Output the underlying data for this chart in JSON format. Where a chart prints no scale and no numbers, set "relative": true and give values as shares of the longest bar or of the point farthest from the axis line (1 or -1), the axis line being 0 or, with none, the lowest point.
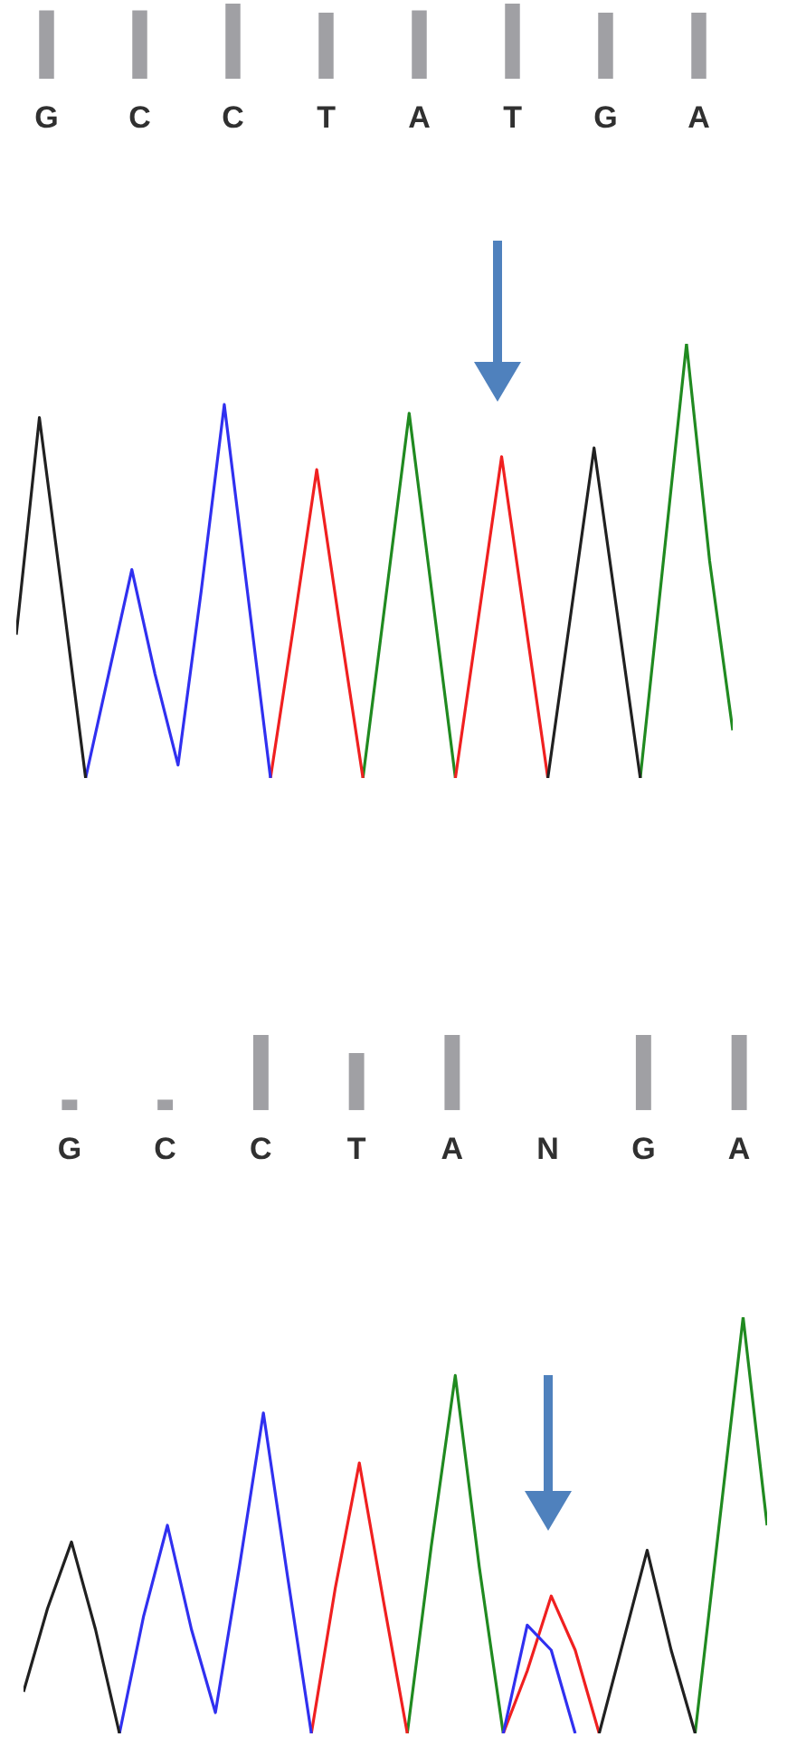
{
  "chart_data": [
    {
      "type": "bar",
      "relative": true,
      "categories": [
        "G",
        "C",
        "C",
        "T",
        "A",
        "T",
        "G",
        "A"
      ],
      "values": [
        0.91,
        0.91,
        1,
        0.88,
        0.91,
        1,
        0.88,
        0.88
      ],
      "color": "#a0a0a4"
    },
    {
      "type": "line",
      "relative": true,
      "marker": "none",
      "categories": [
        null,
        null,
        null,
        null,
        null,
        null,
        null,
        null,
        null,
        null,
        null,
        null,
        null,
        null,
        null,
        null,
        null,
        null,
        null,
        null,
        null,
        null,
        null,
        null,
        null,
        null,
        null,
        null,
        null,
        null,
        null,
        null
      ],
      "series": [
        {
          "color": "#202020",
          "values": [
            0.33,
            0.83,
            0.42,
            0,
            null,
            null,
            null,
            null,
            null,
            null,
            null,
            null,
            null,
            null,
            null,
            null,
            null,
            null,
            null,
            null,
            null,
            null,
            null,
            null,
            null,
            null,
            null,
            null,
            null,
            null,
            null,
            null
          ]
        },
        {
          "color": "#202020",
          "values": [
            null,
            null,
            null,
            null,
            null,
            null,
            null,
            null,
            null,
            null,
            null,
            null,
            null,
            null,
            null,
            null,
            null,
            null,
            null,
            null,
            null,
            null,
            null,
            0,
            0.38,
            0.76,
            0.38,
            0,
            null,
            null,
            null,
            null
          ]
        },
        {
          "color": "#3030f0",
          "values": [
            null,
            null,
            null,
            0,
            0.24,
            0.48,
            0.24,
            0.03,
            0.43,
            0.86,
            0.43,
            0,
            null,
            null,
            null,
            null,
            null,
            null,
            null,
            null,
            null,
            null,
            null,
            null,
            null,
            null,
            null,
            null,
            null,
            null,
            null,
            null
          ]
        },
        {
          "color": "#f02020",
          "values": [
            null,
            null,
            null,
            null,
            null,
            null,
            null,
            null,
            null,
            null,
            null,
            0,
            0.35,
            0.71,
            0.35,
            0,
            null,
            null,
            null,
            null,
            null,
            null,
            null,
            null,
            null,
            null,
            null,
            null,
            null,
            null,
            null,
            null
          ]
        },
        {
          "color": "#f02020",
          "values": [
            null,
            null,
            null,
            null,
            null,
            null,
            null,
            null,
            null,
            null,
            null,
            null,
            null,
            null,
            null,
            null,
            null,
            null,
            null,
            0,
            0.37,
            0.74,
            0.37,
            0,
            null,
            null,
            null,
            null,
            null,
            null,
            null,
            null
          ]
        },
        {
          "color": "#208a20",
          "values": [
            null,
            null,
            null,
            null,
            null,
            null,
            null,
            null,
            null,
            null,
            null,
            null,
            null,
            null,
            null,
            0,
            0.42,
            0.84,
            0.42,
            0,
            null,
            null,
            null,
            null,
            null,
            null,
            null,
            null,
            null,
            null,
            null,
            null
          ]
        },
        {
          "color": "#208a20",
          "values": [
            null,
            null,
            null,
            null,
            null,
            null,
            null,
            null,
            null,
            null,
            null,
            null,
            null,
            null,
            null,
            null,
            null,
            null,
            null,
            null,
            null,
            null,
            null,
            null,
            null,
            null,
            null,
            0,
            0.5,
            1,
            0.5,
            0.11
          ]
        }
      ]
    },
    {
      "type": "bar",
      "relative": true,
      "categories": [
        "G",
        "C",
        "C",
        "T",
        "A",
        "N",
        "G",
        "A"
      ],
      "values": [
        0.14,
        0.14,
        1,
        0.76,
        1,
        0,
        1,
        1
      ],
      "color": "#a0a0a4"
    },
    {
      "type": "line",
      "relative": true,
      "marker": "none",
      "categories": [
        null,
        null,
        null,
        null,
        null,
        null,
        null,
        null,
        null,
        null,
        null,
        null,
        null,
        null,
        null,
        null,
        null,
        null,
        null,
        null,
        null,
        null,
        null,
        null,
        null,
        null,
        null,
        null,
        null,
        null,
        null,
        null
      ],
      "series": [
        {
          "color": "#202020",
          "values": [
            0.1,
            0.3,
            0.46,
            0.25,
            0,
            null,
            null,
            null,
            null,
            null,
            null,
            null,
            null,
            null,
            null,
            null,
            null,
            null,
            null,
            null,
            null,
            null,
            null,
            null,
            null,
            null,
            null,
            null,
            null,
            null,
            null,
            null
          ]
        },
        {
          "color": "#202020",
          "values": [
            null,
            null,
            null,
            null,
            null,
            null,
            null,
            null,
            null,
            null,
            null,
            null,
            null,
            null,
            null,
            null,
            null,
            null,
            null,
            null,
            null,
            null,
            null,
            null,
            0,
            0.22,
            0.44,
            0.2,
            0,
            null,
            null,
            null
          ]
        },
        {
          "color": "#3030f0",
          "values": [
            null,
            null,
            null,
            null,
            0,
            0.28,
            0.5,
            0.25,
            0.05,
            0.4,
            0.77,
            0.38,
            0,
            null,
            null,
            null,
            null,
            null,
            null,
            null,
            null,
            null,
            null,
            null,
            null,
            null,
            null,
            null,
            null,
            null,
            null,
            null
          ]
        },
        {
          "color": "#3030f0",
          "values": [
            null,
            null,
            null,
            null,
            null,
            null,
            null,
            null,
            null,
            null,
            null,
            null,
            null,
            null,
            null,
            null,
            null,
            null,
            null,
            null,
            0,
            0.26,
            0.2,
            0,
            null,
            null,
            null,
            null,
            null,
            null,
            null,
            null
          ]
        },
        {
          "color": "#f02020",
          "values": [
            null,
            null,
            null,
            null,
            null,
            null,
            null,
            null,
            null,
            null,
            null,
            null,
            0,
            0.35,
            0.65,
            0.32,
            0,
            null,
            null,
            null,
            null,
            null,
            null,
            null,
            null,
            null,
            null,
            null,
            null,
            null,
            null,
            null
          ]
        },
        {
          "color": "#f02020",
          "values": [
            null,
            null,
            null,
            null,
            null,
            null,
            null,
            null,
            null,
            null,
            null,
            null,
            null,
            null,
            null,
            null,
            null,
            null,
            null,
            null,
            0,
            0.15,
            0.33,
            0.2,
            0,
            null,
            null,
            null,
            null,
            null,
            null,
            null
          ]
        },
        {
          "color": "#208a20",
          "values": [
            null,
            null,
            null,
            null,
            null,
            null,
            null,
            null,
            null,
            null,
            null,
            null,
            null,
            null,
            null,
            null,
            0,
            0.45,
            0.86,
            0.4,
            0,
            null,
            null,
            null,
            null,
            null,
            null,
            null,
            null,
            null,
            null,
            null
          ]
        },
        {
          "color": "#208a20",
          "values": [
            null,
            null,
            null,
            null,
            null,
            null,
            null,
            null,
            null,
            null,
            null,
            null,
            null,
            null,
            null,
            null,
            null,
            null,
            null,
            null,
            null,
            null,
            null,
            null,
            null,
            null,
            null,
            null,
            0,
            0.5,
            1,
            0.5
          ]
        }
      ]
    }
  ]
}
